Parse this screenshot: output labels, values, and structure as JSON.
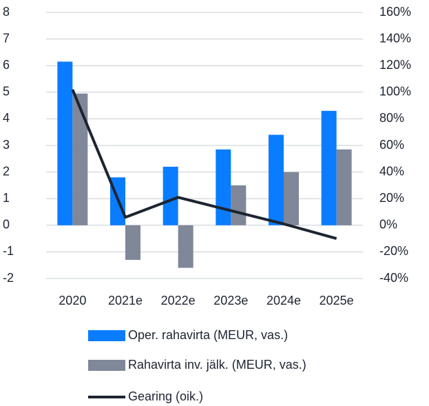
{
  "chart_data": {
    "type": "bar",
    "categories": [
      "2020",
      "2021e",
      "2022e",
      "2023e",
      "2024e",
      "2025e"
    ],
    "series": [
      {
        "name": "Oper. rahavirta (MEUR, vas.)",
        "color": "#0a7cff",
        "values": [
          6.15,
          1.8,
          2.2,
          2.85,
          3.4,
          4.3
        ]
      },
      {
        "name": "Rahavirta inv. jälk. (MEUR, vas.)",
        "color": "#7f8799",
        "values": [
          4.95,
          -1.3,
          -1.6,
          1.5,
          2.0,
          2.85
        ]
      },
      {
        "name": "Gearing (oik.)",
        "color": "#1d2431",
        "type": "line",
        "axis": "y2",
        "values": [
          102,
          6,
          21,
          11,
          1,
          -10
        ]
      }
    ],
    "ylim": [
      -2,
      8
    ],
    "yticks": [
      -2,
      -1,
      0,
      1,
      2,
      3,
      4,
      5,
      6,
      7,
      8
    ],
    "y2lim": [
      -40,
      160
    ],
    "y2ticks": [
      {
        "value": -40,
        "label": "-40%"
      },
      {
        "value": -20,
        "label": "-20%"
      },
      {
        "value": 0,
        "label": "0%"
      },
      {
        "value": 20,
        "label": "20%"
      },
      {
        "value": 40,
        "label": "40%"
      },
      {
        "value": 60,
        "label": "60%"
      },
      {
        "value": 80,
        "label": "80%"
      },
      {
        "value": 100,
        "label": "100%"
      },
      {
        "value": 120,
        "label": "120%"
      },
      {
        "value": 140,
        "label": "140%"
      },
      {
        "value": 160,
        "label": "160%"
      }
    ],
    "grid": true,
    "legend": "bottom"
  }
}
